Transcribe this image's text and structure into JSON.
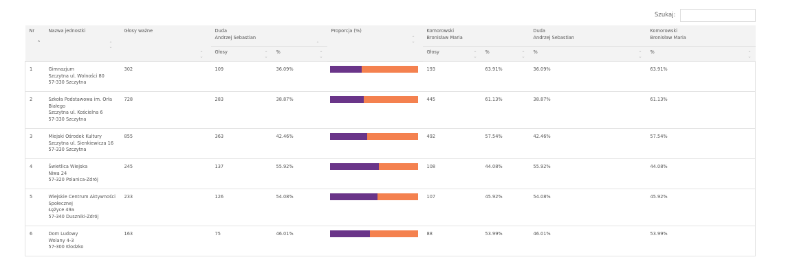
{
  "search": {
    "label": "Szukaj:",
    "value": "",
    "placeholder": ""
  },
  "header": {
    "nr": "Nr",
    "name": "Nazwa jednostki",
    "valid_votes": "Głosy ważne",
    "duda_line1": "Duda",
    "duda_line2": "Andrzej Sebastian",
    "proportion": "Proporcja (%)",
    "komorowski_line1": "Komorowski",
    "komorowski_line2": "Bronisław Maria",
    "duda2_line1": "Duda",
    "duda2_line2": "Andrzej Sebastian",
    "komorowski2_line1": "Komorowski",
    "komorowski2_line2": "Bronisław Maria",
    "sub_votes": "Głosy",
    "sub_pct": "%",
    "sub_votes_k": "Głosy",
    "sub_pct_k": "%",
    "sub_pct_d2": "%",
    "sub_pct_k2": "%"
  },
  "colors": {
    "duda": "#6a3589",
    "komorowski": "#f4814f"
  },
  "rows": [
    {
      "nr": "1",
      "name": [
        "Gimnazjum",
        "Szczytna ul. Wolności 80",
        "57-330 Szczytna"
      ],
      "valid": "302",
      "duda_votes": "109",
      "duda_pct": "36.09%",
      "duda_frac": 0.3609,
      "kom_votes": "193",
      "kom_pct": "63.91%",
      "duda_pct2": "36.09%",
      "kom_pct2": "63.91%"
    },
    {
      "nr": "2",
      "name": [
        "Szkoła Podstawowa im. Orła",
        "Białego",
        "Szczytna ul. Kościelna 6",
        "57-330 Szczytna"
      ],
      "valid": "728",
      "duda_votes": "283",
      "duda_pct": "38.87%",
      "duda_frac": 0.3887,
      "kom_votes": "445",
      "kom_pct": "61.13%",
      "duda_pct2": "38.87%",
      "kom_pct2": "61.13%"
    },
    {
      "nr": "3",
      "name": [
        "Miejski Ośrodek Kultury",
        "Szczytna ul. Sienkiewicza 16",
        "57-330 Szczytna"
      ],
      "valid": "855",
      "duda_votes": "363",
      "duda_pct": "42.46%",
      "duda_frac": 0.4246,
      "kom_votes": "492",
      "kom_pct": "57.54%",
      "duda_pct2": "42.46%",
      "kom_pct2": "57.54%"
    },
    {
      "nr": "4",
      "name": [
        "Świetlica Wiejska",
        "Niwa 24",
        "57-320 Polanica-Zdrój"
      ],
      "valid": "245",
      "duda_votes": "137",
      "duda_pct": "55.92%",
      "duda_frac": 0.5592,
      "kom_votes": "108",
      "kom_pct": "44.08%",
      "duda_pct2": "55.92%",
      "kom_pct2": "44.08%"
    },
    {
      "nr": "5",
      "name": [
        "Wiejskie Centrum Aktywności",
        "Społecznej",
        "Łężyce 49a",
        "57-340 Duszniki-Zdrój"
      ],
      "valid": "233",
      "duda_votes": "126",
      "duda_pct": "54.08%",
      "duda_frac": 0.5408,
      "kom_votes": "107",
      "kom_pct": "45.92%",
      "duda_pct2": "54.08%",
      "kom_pct2": "45.92%"
    },
    {
      "nr": "6",
      "name": [
        "Dom Ludowy",
        "Wolany 4-3",
        "57-300 Kłodzko"
      ],
      "valid": "163",
      "duda_votes": "75",
      "duda_pct": "46.01%",
      "duda_frac": 0.4601,
      "kom_votes": "88",
      "kom_pct": "53.99%",
      "duda_pct2": "46.01%",
      "kom_pct2": "53.99%"
    }
  ]
}
